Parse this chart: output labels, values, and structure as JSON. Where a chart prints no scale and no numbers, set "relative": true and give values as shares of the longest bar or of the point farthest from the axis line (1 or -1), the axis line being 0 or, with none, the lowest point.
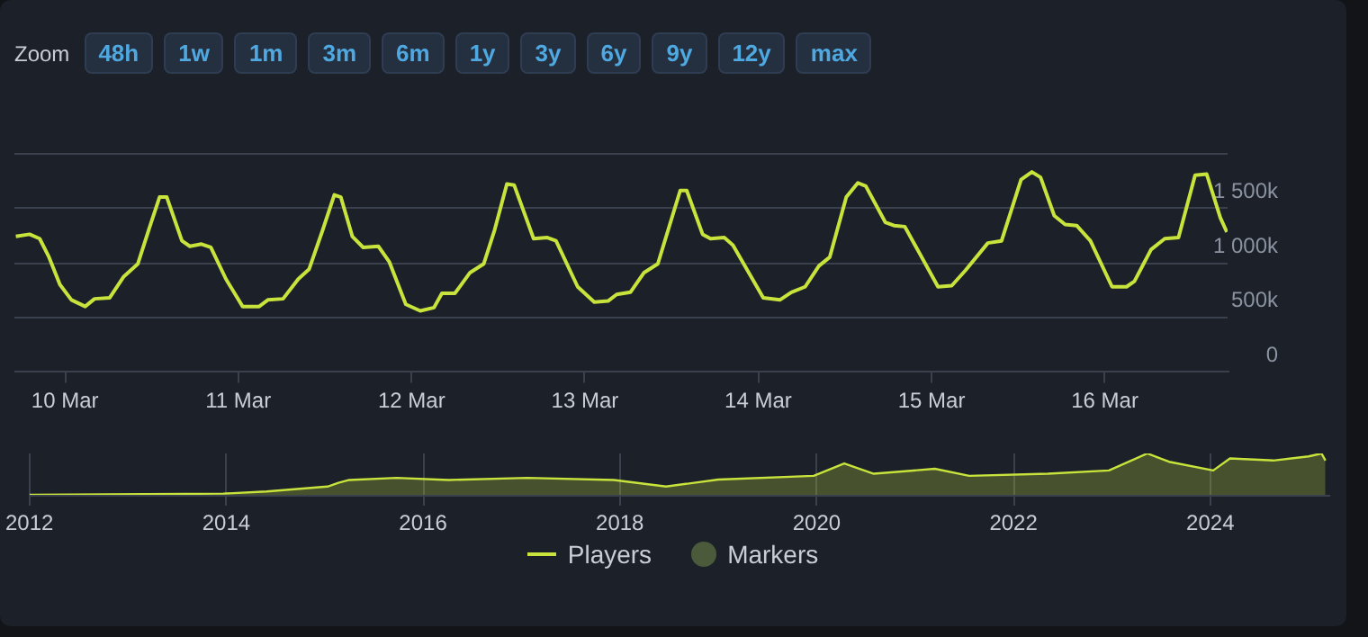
{
  "chart_data": [
    {
      "type": "line",
      "annotations": [
        "Zoom",
        "48h",
        "1w",
        "1m",
        "3m",
        "6m",
        "1y",
        "3y",
        "6y",
        "9y",
        "12y",
        "max"
      ],
      "xlim": [
        "--03-09T17:00",
        "--03-16T17:00"
      ],
      "xticks": [
        {
          "value": "--03-10",
          "label": "10 Mar"
        },
        {
          "value": "--03-11",
          "label": "11 Mar"
        },
        {
          "value": "--03-12",
          "label": "12 Mar"
        },
        {
          "value": "--03-13",
          "label": "13 Mar"
        },
        {
          "value": "--03-14",
          "label": "14 Mar"
        },
        {
          "value": "--03-15",
          "label": "15 Mar"
        },
        {
          "value": "--03-16",
          "label": "16 Mar"
        }
      ],
      "ylim": [
        0,
        2000000
      ],
      "yticks": [
        0,
        {
          "value": 500000,
          "label": "500k"
        },
        {
          "value": 1000000,
          "label": "1 000k"
        },
        {
          "value": 1500000,
          "label": "1 500k"
        },
        {
          "value": 2000000,
          "label": null
        }
      ],
      "grid": "y",
      "legend": "bottom",
      "marker": "none",
      "series": [
        {
          "name": "Players",
          "color": "#c8e43c",
          "x": [
            "--03-09T17:12",
            "--03-09T19:06",
            "--03-09T20:30",
            "--03-09T21:48",
            "--03-09T23:18",
            "--03-10T00:54",
            "--03-10T02:48",
            "--03-10T04:06",
            "--03-10T06:12",
            "--03-10T08:06",
            "--03-10T10:06",
            "--03-10T11:36",
            "--03-10T13:06",
            "--03-10T14:06",
            "--03-10T16:12",
            "--03-10T17:18",
            "--03-10T18:54",
            "--03-10T20:12",
            "--03-10T22:18",
            "--03-11T00:36",
            "--03-11T02:54",
            "--03-11T04:06",
            "--03-11T06:12",
            "--03-11T08:18",
            "--03-11T09:48",
            "--03-11T11:42",
            "--03-11T13:18",
            "--03-11T14:12",
            "--03-11T15:48",
            "--03-11T17:18",
            "--03-11T19:24",
            "--03-11T20:54",
            "--03-11T23:12",
            "--03-12T01:12",
            "--03-12T03:06",
            "--03-12T04:12",
            "--03-12T06:00",
            "--03-12T08:06",
            "--03-12T10:00",
            "--03-12T11:30",
            "--03-12T13:12",
            "--03-12T14:12",
            "--03-12T16:54",
            "--03-12T18:48",
            "--03-12T20:00",
            "--03-12T23:00",
            "--03-13T01:18",
            "--03-13T03:12",
            "--03-13T04:24",
            "--03-13T06:18",
            "--03-13T08:12",
            "--03-13T10:06",
            "--03-13T13:12",
            "--03-13T14:06",
            "--03-13T16:18",
            "--03-13T17:24",
            "--03-13T19:18",
            "--03-13T20:30",
            "--03-14T00:42",
            "--03-14T03:00",
            "--03-14T04:36",
            "--03-14T06:30",
            "--03-14T08:24",
            "--03-14T09:54",
            "--03-14T12:12",
            "--03-14T13:48",
            "--03-14T14:54",
            "--03-14T17:36",
            "--03-14T18:48",
            "--03-14T20:18",
            "--03-15T00:54",
            "--03-15T02:48",
            "--03-15T04:42",
            "--03-15T07:48",
            "--03-15T09:42",
            "--03-15T12:24",
            "--03-15T13:54",
            "--03-15T15:06",
            "--03-15T17:00",
            "--03-15T18:30",
            "--03-15T20:06",
            "--03-15T22:00",
            "--03-16T01:00",
            "--03-16T03:00",
            "--03-16T04:06",
            "--03-16T06:24",
            "--03-16T08:18",
            "--03-16T10:12",
            "--03-16T12:30",
            "--03-16T14:06",
            "--03-16T16:00",
            "--03-16T16:54"
          ],
          "values": [
            1240000,
            1260000,
            1220000,
            1050000,
            800000,
            660000,
            600000,
            670000,
            680000,
            870000,
            990000,
            1300000,
            1600000,
            1600000,
            1200000,
            1150000,
            1170000,
            1140000,
            850000,
            600000,
            600000,
            660000,
            670000,
            850000,
            940000,
            1300000,
            1620000,
            1600000,
            1240000,
            1140000,
            1150000,
            1010000,
            620000,
            560000,
            590000,
            720000,
            720000,
            910000,
            990000,
            1300000,
            1720000,
            1710000,
            1220000,
            1230000,
            1200000,
            780000,
            640000,
            650000,
            710000,
            730000,
            910000,
            990000,
            1660000,
            1660000,
            1260000,
            1220000,
            1230000,
            1160000,
            680000,
            660000,
            730000,
            780000,
            970000,
            1050000,
            1600000,
            1730000,
            1700000,
            1370000,
            1340000,
            1330000,
            780000,
            790000,
            930000,
            1180000,
            1200000,
            1760000,
            1830000,
            1780000,
            1430000,
            1350000,
            1340000,
            1200000,
            780000,
            780000,
            830000,
            1120000,
            1220000,
            1230000,
            1800000,
            1810000,
            1410000,
            1280000
          ]
        },
        {
          "name": "Markers",
          "type": "scatter",
          "color": "#4b5a3a"
        }
      ]
    },
    {
      "type": "area",
      "relative": true,
      "xlim": [
        2012,
        2025.2
      ],
      "xticks": [
        2012,
        2014,
        2016,
        2018,
        2020,
        2022,
        2024
      ],
      "grid": "x",
      "tick_labels": "x",
      "marker": "none",
      "series": [
        {
          "color": "#c8e43c",
          "x": [
            2012,
            2013.97,
            2014.41,
            2015.03,
            2015.14,
            2015.25,
            2015.73,
            2016.26,
            2017.06,
            2017.94,
            2018.47,
            2019.0,
            2019.97,
            2020.28,
            2020.58,
            2021.2,
            2021.55,
            2022.35,
            2022.97,
            2023.36,
            2023.58,
            2024.03,
            2024.2,
            2024.64,
            2025.0,
            2025.13,
            2025.17
          ],
          "values": [
            0,
            0.03,
            0.08,
            0.2,
            0.29,
            0.36,
            0.41,
            0.36,
            0.41,
            0.36,
            0.2,
            0.37,
            0.46,
            0.76,
            0.51,
            0.63,
            0.46,
            0.51,
            0.59,
            1,
            0.8,
            0.59,
            0.88,
            0.83,
            0.93,
            1,
            0.83
          ]
        }
      ]
    }
  ]
}
